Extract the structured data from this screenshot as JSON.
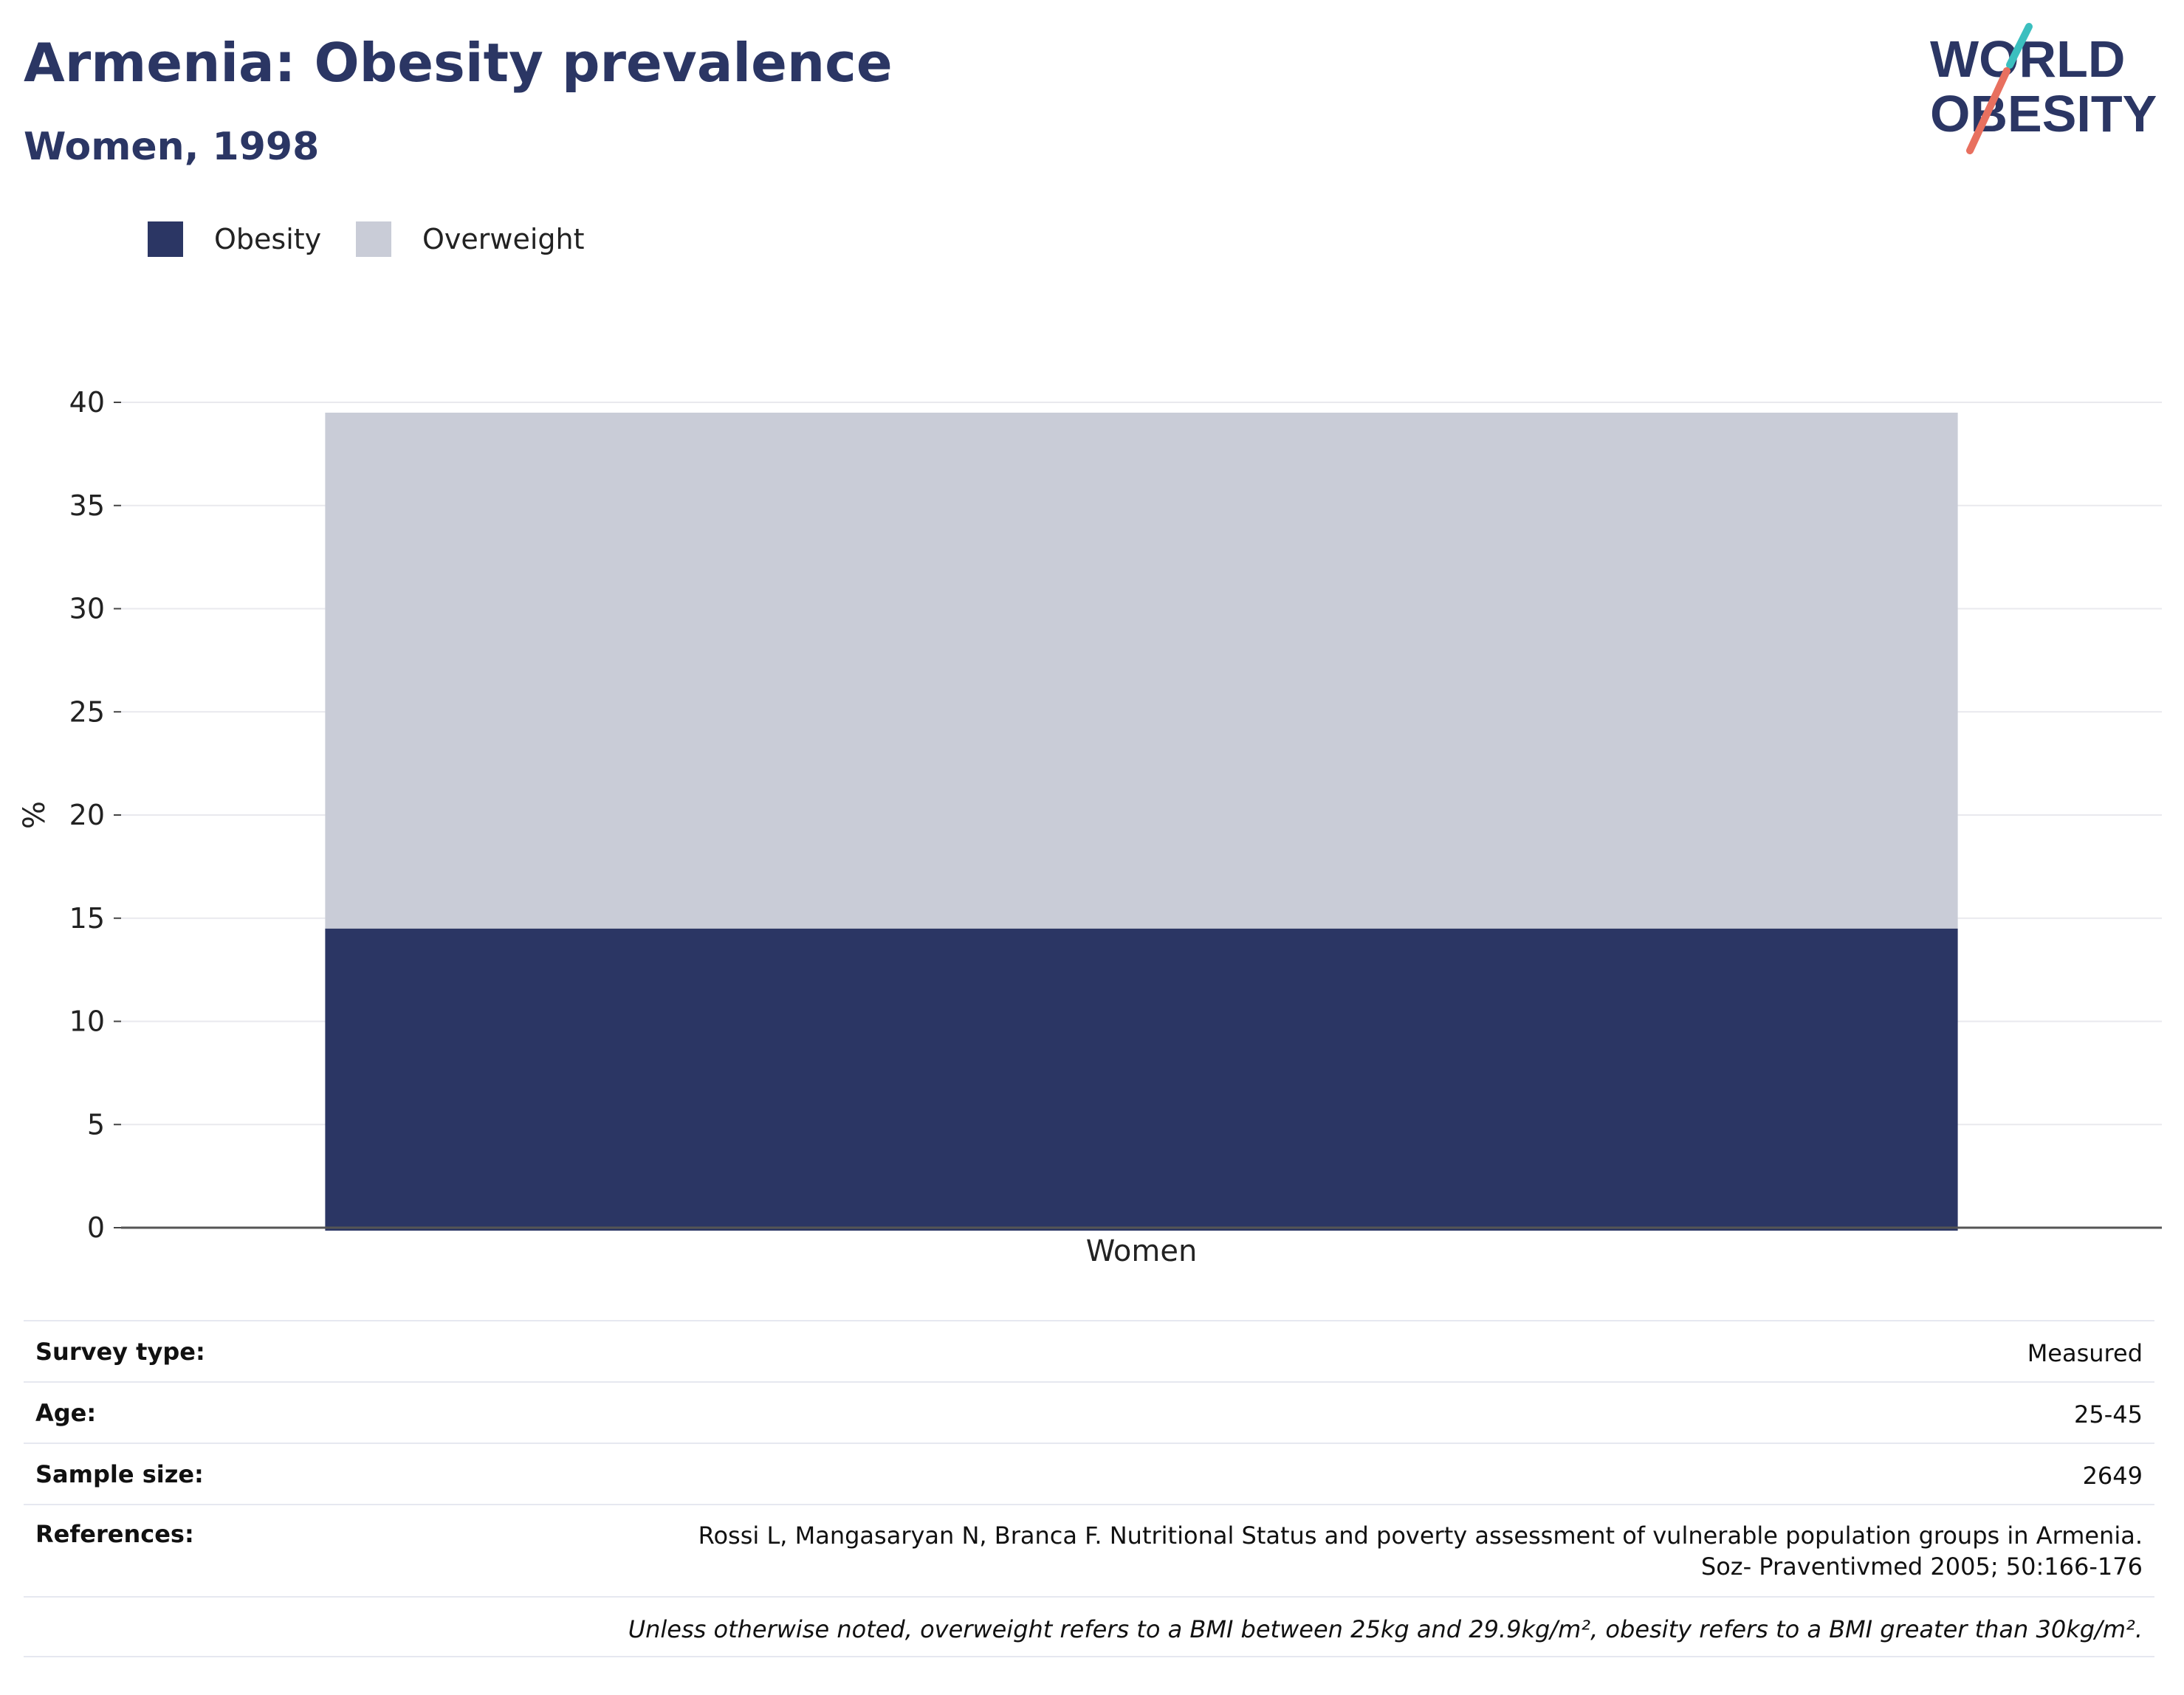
{
  "header": {
    "title": "Armenia: Obesity prevalence",
    "subtitle": "Women, 1998"
  },
  "logo": {
    "line1": "WORLD",
    "line2": "OBESITY",
    "accent_teal": "#3bbfbf",
    "accent_coral": "#e8705f"
  },
  "legend": {
    "items": [
      {
        "label": "Obesity",
        "color": "#2b3664"
      },
      {
        "label": "Overweight",
        "color": "#c9ccd7"
      }
    ]
  },
  "chart_data": {
    "type": "bar",
    "stacked": true,
    "categories": [
      "Women"
    ],
    "series": [
      {
        "name": "Obesity",
        "values": [
          14.5
        ],
        "color": "#2b3664"
      },
      {
        "name": "Overweight",
        "values": [
          25.0
        ],
        "color": "#c9ccd7"
      }
    ],
    "ylabel": "%",
    "xlabel": "",
    "ylim": [
      0,
      40
    ],
    "yticks": [
      0,
      5,
      10,
      15,
      20,
      25,
      30,
      35,
      40
    ],
    "grid": true,
    "legend_position": "top-left"
  },
  "info": {
    "rows": [
      {
        "label": "Survey type:",
        "value": "Measured"
      },
      {
        "label": "Age:",
        "value": "25-45"
      },
      {
        "label": "Sample size:",
        "value": "2649"
      },
      {
        "label": "References:",
        "value": "Rossi L, Mangasaryan N, Branca F. Nutritional Status and poverty assessment of vulnerable population groups in Armenia. Soz- Praventivmed 2005; 50:166-176"
      }
    ],
    "note": "Unless otherwise noted, overweight refers to a BMI between 25kg and 29.9kg/m², obesity refers to a BMI greater than 30kg/m²."
  }
}
